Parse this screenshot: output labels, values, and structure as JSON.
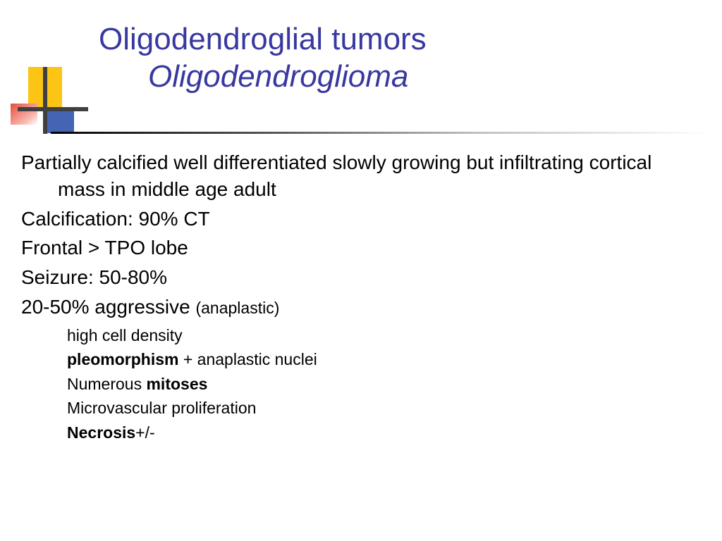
{
  "colors": {
    "title": "#3838a0",
    "body": "#000000",
    "yellow": "#fcc414",
    "blue": "#4464b4",
    "red": "#e84c3c",
    "background": "#ffffff"
  },
  "title": {
    "line1": "Oligodendroglial tumors",
    "line2": "Oligodendroglioma"
  },
  "body": {
    "intro": "Partially calcified well differentiated slowly growing but infiltrating cortical mass in middle age adult",
    "calcification": "Calcification: 90% CT",
    "frontal": "Frontal > TPO lobe",
    "seizure": "Seizure: 50-80%",
    "aggressive_main": "20-50% aggressive ",
    "aggressive_paren": "(anaplastic)"
  },
  "sub": {
    "s1": "high cell density",
    "s2a": "pleomorphism",
    "s2b": " + anaplastic nuclei",
    "s3a": "Numerous ",
    "s3b": "mitoses",
    "s4": "Microvascular proliferation",
    "s5a": "Necrosis",
    "s5b": "+/-"
  }
}
